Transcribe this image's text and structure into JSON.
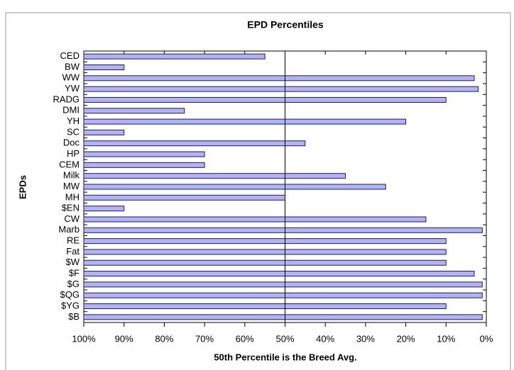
{
  "chart_data": {
    "type": "hbar",
    "title": "EPD Percentiles",
    "ylabel": "EPDs",
    "xlabel": "50th Percentile is the Breed Avg.",
    "categories": [
      "CED",
      "BW",
      "WW",
      "YW",
      "RADG",
      "DMI",
      "YH",
      "SC",
      "Doc",
      "HP",
      "CEM",
      "Milk",
      "MW",
      "MH",
      "$EN",
      "CW",
      "Marb",
      "RE",
      "Fat",
      "$W",
      "$F",
      "$G",
      "$QG",
      "$YG",
      "$B"
    ],
    "values": [
      55,
      90,
      3,
      2,
      10,
      75,
      20,
      90,
      45,
      70,
      70,
      35,
      25,
      50,
      90,
      15,
      1,
      10,
      10,
      10,
      3,
      1,
      1,
      10,
      1
    ],
    "color": "#b4b4ec",
    "edge_color": "#1a1a6e",
    "xlim": [
      100,
      0
    ],
    "xticks": [
      {
        "value": 100,
        "label": "100%"
      },
      {
        "value": 90,
        "label": "90%"
      },
      {
        "value": 80,
        "label": "80%"
      },
      {
        "value": 70,
        "label": "70%"
      },
      {
        "value": 60,
        "label": "60%"
      },
      {
        "value": 50,
        "label": "50%"
      },
      {
        "value": 40,
        "label": "40%"
      },
      {
        "value": 30,
        "label": "30%"
      },
      {
        "value": 20,
        "label": "20%"
      },
      {
        "value": 10,
        "label": "10%"
      },
      {
        "value": 0,
        "label": "0%"
      }
    ],
    "reference_line": 50
  }
}
